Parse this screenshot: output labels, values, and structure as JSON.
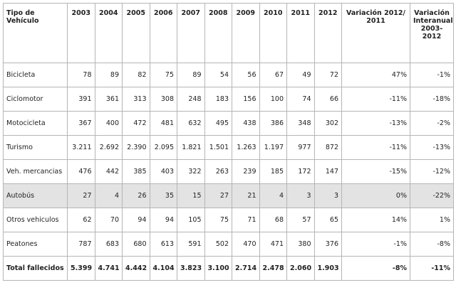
{
  "table": {
    "header": [
      "Tipo de Vehículo",
      "2003",
      "2004",
      "2005",
      "2006",
      "2007",
      "2008",
      "2009",
      "2010",
      "2011",
      "2012",
      "Variación 2012/ 2011",
      "Variación Interanual 2003-2012"
    ],
    "rows": [
      [
        "Bicicleta",
        "78",
        "89",
        "82",
        "75",
        "89",
        "54",
        "56",
        "67",
        "49",
        "72",
        "47%",
        "-1%"
      ],
      [
        "Ciclomotor",
        "391",
        "361",
        "313",
        "308",
        "248",
        "183",
        "156",
        "100",
        "74",
        "66",
        "-11%",
        "-18%"
      ],
      [
        "Motocicleta",
        "367",
        "400",
        "472",
        "481",
        "632",
        "495",
        "438",
        "386",
        "348",
        "302",
        "-13%",
        "-2%"
      ],
      [
        "Turismo",
        "3.211",
        "2.692",
        "2.390",
        "2.095",
        "1.821",
        "1.501",
        "1.263",
        "1.197",
        "977",
        "872",
        "-11%",
        "-13%"
      ],
      [
        "Veh. mercancias",
        "476",
        "442",
        "385",
        "403",
        "322",
        "263",
        "239",
        "185",
        "172",
        "147",
        "-15%",
        "-12%"
      ],
      [
        "Autobús",
        "27",
        "4",
        "26",
        "35",
        "15",
        "27",
        "21",
        "4",
        "3",
        "3",
        "0%",
        "-22%"
      ],
      [
        "Otros vehiculos",
        "62",
        "70",
        "94",
        "94",
        "105",
        "75",
        "71",
        "68",
        "57",
        "65",
        "14%",
        "1%"
      ],
      [
        "Peatones",
        "787",
        "683",
        "680",
        "613",
        "591",
        "502",
        "470",
        "471",
        "380",
        "376",
        "-1%",
        "-8%"
      ],
      [
        "Total fallecidos",
        "5.399",
        "4.741",
        "4.442",
        "4.104",
        "3.823",
        "3.100",
        "2.714",
        "2.478",
        "2.060",
        "1.903",
        "-8%",
        "-11%"
      ]
    ]
  }
}
